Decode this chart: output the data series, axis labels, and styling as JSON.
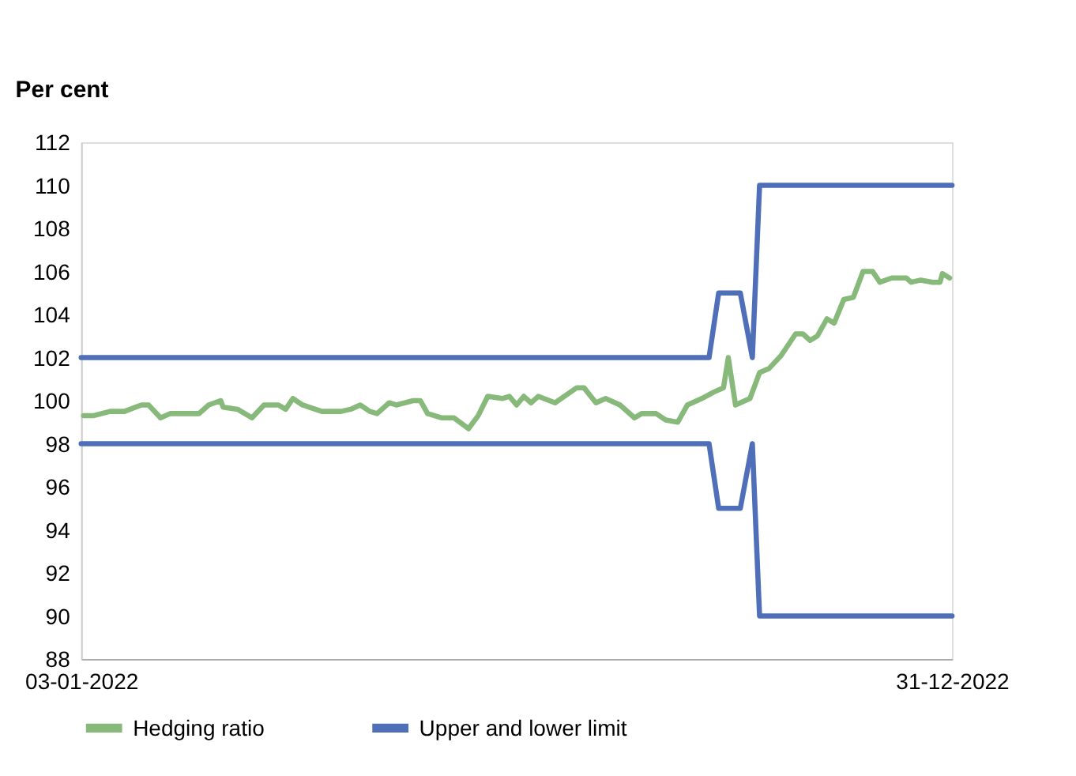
{
  "chart_data": {
    "type": "line",
    "ylabel": "Per cent",
    "ylim": [
      88,
      112
    ],
    "yticks": [
      88,
      90,
      92,
      94,
      96,
      98,
      100,
      102,
      104,
      106,
      108,
      110,
      112
    ],
    "xlim": [
      "2022-01-03",
      "2022-12-31"
    ],
    "xticks": [
      {
        "value": "2022-01-03",
        "label": "03-01-2022"
      },
      {
        "value": "2022-12-31",
        "label": "31-12-2022"
      }
    ],
    "grid": false,
    "legend": "bottom",
    "marker": "none",
    "line_style": "solid",
    "series": [
      {
        "name": "Hedging ratio",
        "color": "#86b97a",
        "x": [
          "2022-01-04",
          "2022-01-08",
          "2022-01-15",
          "2022-01-21",
          "2022-01-28",
          "2022-01-31",
          "2022-02-05",
          "2022-02-09",
          "2022-02-21",
          "2022-02-25",
          "2022-03-02",
          "2022-03-03",
          "2022-03-09",
          "2022-03-15",
          "2022-03-20",
          "2022-03-26",
          "2022-03-29",
          "2022-04-01",
          "2022-04-05",
          "2022-04-13",
          "2022-04-21",
          "2022-04-25",
          "2022-04-29",
          "2022-05-03",
          "2022-05-06",
          "2022-05-11",
          "2022-05-14",
          "2022-05-21",
          "2022-05-24",
          "2022-05-27",
          "2022-06-02",
          "2022-06-07",
          "2022-06-13",
          "2022-06-17",
          "2022-06-21",
          "2022-06-27",
          "2022-06-30",
          "2022-07-03",
          "2022-07-06",
          "2022-07-09",
          "2022-07-12",
          "2022-07-19",
          "2022-07-28",
          "2022-07-31",
          "2022-08-05",
          "2022-08-09",
          "2022-08-15",
          "2022-08-21",
          "2022-08-24",
          "2022-08-30",
          "2022-09-03",
          "2022-09-08",
          "2022-09-12",
          "2022-09-18",
          "2022-09-23",
          "2022-09-27",
          "2022-09-29",
          "2022-10-02",
          "2022-10-08",
          "2022-10-12",
          "2022-10-16",
          "2022-10-21",
          "2022-10-27",
          "2022-10-30",
          "2022-11-02",
          "2022-11-05",
          "2022-11-09",
          "2022-11-12",
          "2022-11-16",
          "2022-11-20",
          "2022-11-24",
          "2022-11-28",
          "2022-12-01",
          "2022-12-06",
          "2022-12-12",
          "2022-12-14",
          "2022-12-18",
          "2022-12-23",
          "2022-12-26",
          "2022-12-27",
          "2022-12-30"
        ],
        "values": [
          99.3,
          99.3,
          99.5,
          99.5,
          99.8,
          99.8,
          99.2,
          99.4,
          99.4,
          99.8,
          100.0,
          99.7,
          99.6,
          99.2,
          99.8,
          99.8,
          99.6,
          100.1,
          99.8,
          99.5,
          99.5,
          99.6,
          99.8,
          99.5,
          99.4,
          99.9,
          99.8,
          100.0,
          100.0,
          99.4,
          99.2,
          99.2,
          98.7,
          99.3,
          100.2,
          100.1,
          100.2,
          99.8,
          100.2,
          99.9,
          100.2,
          99.9,
          100.6,
          100.6,
          99.9,
          100.1,
          99.8,
          99.2,
          99.4,
          99.4,
          99.1,
          99.0,
          99.8,
          100.1,
          100.4,
          100.6,
          102.0,
          99.8,
          100.1,
          101.3,
          101.5,
          102.1,
          103.1,
          103.1,
          102.8,
          103.0,
          103.8,
          103.6,
          104.7,
          104.8,
          106.0,
          106.0,
          105.5,
          105.7,
          105.7,
          105.5,
          105.6,
          105.5,
          105.5,
          105.9,
          105.7
        ]
      },
      {
        "name": "Upper and lower limit",
        "color": "#4f6fb8",
        "x": [
          "2022-01-03",
          "2022-09-21",
          "2022-09-25",
          "2022-10-04",
          "2022-10-09",
          "2022-10-12",
          "2022-12-31"
        ],
        "values": [
          102,
          102,
          105,
          105,
          102,
          110,
          110
        ]
      },
      {
        "color": "#4f6fb8",
        "x": [
          "2022-01-03",
          "2022-09-21",
          "2022-09-25",
          "2022-10-04",
          "2022-10-09",
          "2022-10-12",
          "2022-12-31"
        ],
        "values": [
          98,
          98,
          95,
          95,
          98,
          90,
          90
        ]
      }
    ]
  }
}
